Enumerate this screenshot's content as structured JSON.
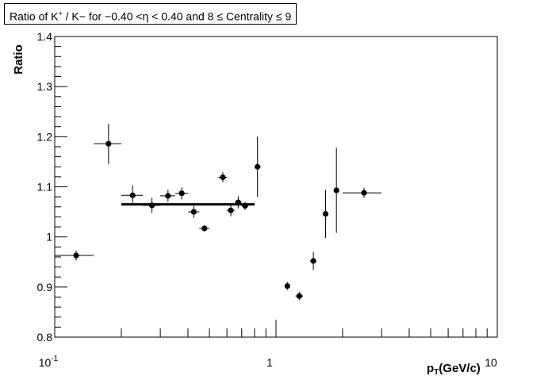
{
  "chart_data": {
    "type": "scatter",
    "title_parts": {
      "prefix": "Ratio of K",
      "sup": "+",
      "middle": " / K",
      "suffix": "− for −0.40 <η <  0.40 and 8 ≤ Centrality ≤ 9"
    },
    "xlabel_main": "p",
    "xlabel_sub": "T",
    "xlabel_unit": "(GeV/c)",
    "ylabel": "Ratio",
    "xscale": "log",
    "xlim": [
      0.1,
      10
    ],
    "ylim": [
      0.8,
      1.4
    ],
    "x_tick_labels": [
      {
        "value": 0.1,
        "base": "10",
        "exp": "-1"
      },
      {
        "value": 1,
        "base": "1",
        "exp": ""
      },
      {
        "value": 10,
        "base": "10",
        "exp": ""
      }
    ],
    "y_ticks": [
      "0.8",
      "0.9",
      "1",
      "1.1",
      "1.2",
      "1.3",
      "1.4"
    ],
    "points": [
      {
        "x": 0.125,
        "y": 0.963,
        "xerr": 0.025,
        "yerr": 0.01
      },
      {
        "x": 0.175,
        "y": 1.186,
        "xerr": 0.025,
        "yerr": 0.04
      },
      {
        "x": 0.225,
        "y": 1.083,
        "xerr": 0.025,
        "yerr": 0.02
      },
      {
        "x": 0.275,
        "y": 1.063,
        "xerr": 0.025,
        "yerr": 0.015
      },
      {
        "x": 0.325,
        "y": 1.082,
        "xerr": 0.025,
        "yerr": 0.012
      },
      {
        "x": 0.375,
        "y": 1.087,
        "xerr": 0.025,
        "yerr": 0.012
      },
      {
        "x": 0.425,
        "y": 1.05,
        "xerr": 0.025,
        "yerr": 0.012
      },
      {
        "x": 0.475,
        "y": 1.017,
        "xerr": 0.025,
        "yerr": 0.006
      },
      {
        "x": 0.575,
        "y": 1.119,
        "xerr": 0.025,
        "yerr": 0.01
      },
      {
        "x": 0.625,
        "y": 1.053,
        "xerr": 0.025,
        "yerr": 0.012
      },
      {
        "x": 0.675,
        "y": 1.069,
        "xerr": 0.025,
        "yerr": 0.012
      },
      {
        "x": 0.725,
        "y": 1.062,
        "xerr": 0.025,
        "yerr": 0.008
      },
      {
        "x": 0.825,
        "y": 1.14,
        "xerr": 0.025,
        "yerr": 0.06
      },
      {
        "x": 1.125,
        "y": 0.902,
        "xerr": 0.025,
        "yerr": 0.008
      },
      {
        "x": 1.275,
        "y": 0.882,
        "xerr": 0.05,
        "yerr": 0.008
      },
      {
        "x": 1.475,
        "y": 0.952,
        "xerr": 0.05,
        "yerr": 0.018
      },
      {
        "x": 1.675,
        "y": 1.046,
        "xerr": 0.05,
        "yerr": 0.048
      },
      {
        "x": 1.875,
        "y": 1.093,
        "xerr": 0.05,
        "yerr": 0.085
      },
      {
        "x": 2.5,
        "y": 1.088,
        "xerr": 0.5,
        "yerr": 0.01
      }
    ],
    "fit_line": {
      "x1": 0.2,
      "x2": 0.8,
      "y": 1.065
    },
    "grid": false,
    "legend": "none"
  }
}
